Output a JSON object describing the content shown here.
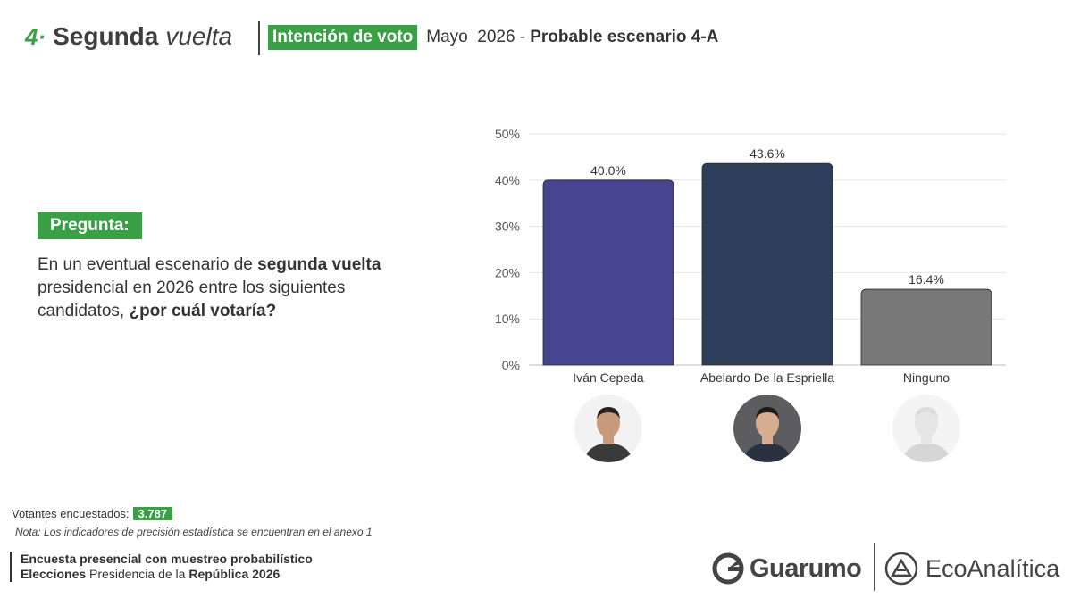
{
  "header": {
    "section_number": "4·",
    "section_title": "Segunda",
    "section_title_italic": "vuelta",
    "badge": "Intención de voto",
    "date": "Mayo  2026 -",
    "scenario": "Probable escenario 4-A"
  },
  "question": {
    "label": "Pregunta:",
    "text_1": "En un eventual escenario de ",
    "text_bold_1": "segunda vuelta",
    "text_2": " presidencial en 2026 entre los siguientes candidatos, ",
    "text_bold_2": "¿por cuál votaría?"
  },
  "chart_data": {
    "type": "bar",
    "categories": [
      "Iván Cepeda",
      "Abelardo De la Espriella",
      "Ninguno"
    ],
    "values": [
      40.0,
      43.6,
      16.4
    ],
    "value_labels": [
      "40.0%",
      "43.6%",
      "16.4%"
    ],
    "colors": [
      "#45448e",
      "#2c3e5a",
      "#787878"
    ],
    "ylim": [
      0,
      50
    ],
    "yticks": [
      0,
      10,
      20,
      30,
      40,
      50
    ],
    "ytick_labels": [
      "0%",
      "10%",
      "20%",
      "30%",
      "40%",
      "50%"
    ],
    "grid": true,
    "title": "",
    "xlabel": "",
    "ylabel": ""
  },
  "avatars": [
    {
      "name": "ivan-cepeda-avatar",
      "icon": "person-photo-icon",
      "skin": "#c89a7c",
      "hair": "#2a211c",
      "suit": "#3a3a3a",
      "bg": "#f2f2f2"
    },
    {
      "name": "abelardo-avatar",
      "icon": "person-photo-icon",
      "skin": "#d7ad90",
      "hair": "#1e1b1a",
      "suit": "#2a3140",
      "bg": "#5d5d60"
    },
    {
      "name": "ninguno-avatar",
      "icon": "mannequin-icon",
      "skin": "#e6e6e6",
      "hair": "#dcdcdc",
      "suit": "#d6d6d6",
      "bg": "#f4f4f4"
    }
  ],
  "footer": {
    "voters_label": "Votantes encuestados:",
    "voters_value": "3.787",
    "note": "Nota: Los indicadores de precisión estadística se encuentran en el anexo 1",
    "method_line1": "Encuesta presencial con muestreo probabilístico",
    "method_line2_bold1": "Elecciones",
    "method_line2_mid": " Presidencia de la ",
    "method_line2_bold2": "República 2026"
  },
  "logos": {
    "guarumo": "Guarumo",
    "ecoanalitica": "EcoAnalítica"
  }
}
